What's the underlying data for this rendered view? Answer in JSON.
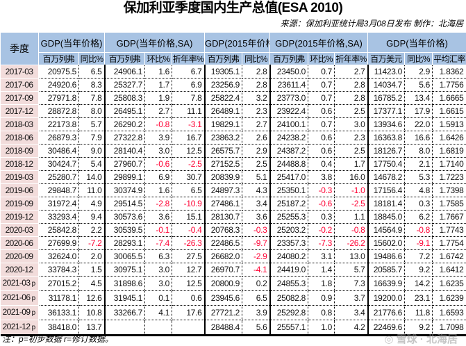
{
  "title": "保加利亚季度国内生产总值(ESA 2010)",
  "source": "来源：保加利亚统计局3月08日发布  制作：北海居",
  "header": {
    "quarter": "季度",
    "groups": [
      "GDP(当年价格)",
      "GDP(当年价格,SA)",
      "GDP(2015年价格)",
      "GDP(2015年价格,SA)",
      "GDP(当年价格)"
    ],
    "subs": [
      "百万列弗",
      "同比%",
      "百万列弗",
      "环比%",
      "折年率%",
      "百万列弗",
      "同比%",
      "百万列弗",
      "环比%",
      "折年率%",
      "百万美元",
      "同比%",
      "平均汇率"
    ]
  },
  "rows": [
    {
      "q": "2017-03",
      "m": "",
      "v": [
        "20975.5",
        "6.5",
        "24906.1",
        "1.6",
        "6.7",
        "19305.1",
        "2.8",
        "23450.0",
        "0.7",
        "2.7",
        "11423.0",
        "2.9",
        "1.8362"
      ]
    },
    {
      "q": "2017-06",
      "m": "",
      "v": [
        "24920.6",
        "8.3",
        "25327.7",
        "1.7",
        "6.9",
        "23256.9",
        "2.8",
        "23611.4",
        "0.7",
        "2.8",
        "14034.7",
        "5.6",
        "1.7756"
      ]
    },
    {
      "q": "2017-09",
      "m": "",
      "v": [
        "27971.8",
        "7.8",
        "25808.3",
        "1.9",
        "7.8",
        "25822.4",
        "3.2",
        "23773.0",
        "0.7",
        "2.8",
        "16785.2",
        "13.4",
        "1.6665"
      ]
    },
    {
      "q": "2017-12",
      "m": "",
      "v": [
        "28872.8",
        "8.0",
        "26495.1",
        "2.7",
        "11.1",
        "26489.1",
        "2.3",
        "23922.4",
        "0.6",
        "2.5",
        "17377.1",
        "17.9",
        "1.6615"
      ]
    },
    {
      "q": "2018-03",
      "m": "",
      "v": [
        "22173.8",
        "5.7",
        "26290.2",
        "-0.8",
        "-3.1",
        "19829.1",
        "2.7",
        "24100.1",
        "0.7",
        "3.0",
        "13934.6",
        "22.0",
        "1.5913"
      ]
    },
    {
      "q": "2018-06",
      "m": "",
      "v": [
        "26879.3",
        "7.9",
        "27322.8",
        "3.9",
        "16.7",
        "23863.2",
        "2.6",
        "24238.2",
        "0.6",
        "2.3",
        "16363.8",
        "16.6",
        "1.6426"
      ]
    },
    {
      "q": "2018-09",
      "m": "",
      "v": [
        "30486.4",
        "9.0",
        "28140.4",
        "3.0",
        "12.5",
        "26575.7",
        "2.9",
        "24387.2",
        "0.6",
        "2.5",
        "18126.7",
        "8.0",
        "1.6819"
      ]
    },
    {
      "q": "2018-12",
      "m": "",
      "v": [
        "30424.7",
        "5.4",
        "27960.7",
        "-0.6",
        "-2.5",
        "27152.5",
        "2.5",
        "24488.8",
        "0.4",
        "1.7",
        "17750.4",
        "2.1",
        "1.7140"
      ]
    },
    {
      "q": "2019-03",
      "m": "",
      "v": [
        "25280.7",
        "14.0",
        "29899.1",
        "6.9",
        "30.7",
        "20839.9",
        "5.1",
        "25417.0",
        "3.8",
        "16.0",
        "14678.2",
        "5.3",
        "1.7223"
      ]
    },
    {
      "q": "2019-06",
      "m": "",
      "v": [
        "29848.7",
        "11.0",
        "30374.9",
        "1.6",
        "6.5",
        "24897.3",
        "4.3",
        "25350.1",
        "-0.3",
        "-1.0",
        "17156.4",
        "4.8",
        "1.7398"
      ]
    },
    {
      "q": "2019-09",
      "m": "",
      "v": [
        "31972.4",
        "4.9",
        "29514.5",
        "-2.8",
        "-10.9",
        "27486.1",
        "3.4",
        "25187.2",
        "-0.6",
        "-2.5",
        "18181.4",
        "0.3",
        "1.7585"
      ]
    },
    {
      "q": "2019-12",
      "m": "",
      "v": [
        "33293.4",
        "9.4",
        "30573.6",
        "3.6",
        "15.1",
        "28130.7",
        "3.6",
        "25255.3",
        "0.3",
        "1.1",
        "18845.0",
        "6.2",
        "1.7667"
      ]
    },
    {
      "q": "2020-03",
      "m": "",
      "v": [
        "25842.8",
        "2.2",
        "30539.5",
        "-0.1",
        "-0.4",
        "20768.3",
        "-0.3",
        "25203.2",
        "-0.2",
        "-0.8",
        "14564.9",
        "-0.8",
        "1.7743"
      ]
    },
    {
      "q": "2020-06",
      "m": "",
      "v": [
        "27699.9",
        "-7.2",
        "28293.1",
        "-7.4",
        "-26.3",
        "22486.5",
        "-9.7",
        "23357.3",
        "-7.3",
        "-26.2",
        "15602.0",
        "-9.1",
        "1.7754"
      ]
    },
    {
      "q": "2020-09",
      "m": "",
      "v": [
        "32624.0",
        "2.0",
        "30065.5",
        "6.3",
        "27.5",
        "26682.0",
        "-2.9",
        "24080.2",
        "3.1",
        "13.0",
        "19486.6",
        "7.2",
        "1.6742"
      ]
    },
    {
      "q": "2020-12",
      "m": "",
      "v": [
        "33784.3",
        "1.5",
        "30975.1",
        "3.0",
        "12.7",
        "26970.7",
        "-4.1",
        "24419.0",
        "1.4",
        "5.7",
        "20585.7",
        "9.2",
        "1.6412"
      ]
    },
    {
      "q": "2021-03",
      "m": "p",
      "v": [
        "27015.2",
        "4.5",
        "31898.6",
        "3.0",
        "12.5",
        "20800.9",
        "0.2",
        "24855.3",
        "1.8",
        "7.3",
        "16639.9",
        "14.2",
        "1.6235"
      ]
    },
    {
      "q": "2021-06",
      "m": "p",
      "v": [
        "31178.1",
        "12.6",
        "31945.1",
        "0.1",
        "0.6",
        "23945.6",
        "6.5",
        "25082.8",
        "0.9",
        "3.7",
        "19200.0",
        "23.1",
        "1.6239"
      ]
    },
    {
      "q": "2021-09",
      "m": "p",
      "v": [
        "36133.1",
        "10.8",
        "33266.7",
        "4.1",
        "17.6",
        "27721.2",
        "3.9",
        "25292.8",
        "0.8",
        "3.4",
        "21776.6",
        "11.8",
        "1.6593"
      ]
    },
    {
      "q": "2021-12",
      "m": "p",
      "v": [
        "38418.0",
        "13.7",
        "",
        "",
        "",
        "28488.4",
        "5.6",
        "25557.1",
        "1.0",
        "4.2",
        "22469.6",
        "9.2",
        "1.7098"
      ]
    }
  ],
  "note": "注：p=初步数据  r=修订数据。",
  "watermark": "雪球 · 北海居",
  "colors": {
    "header_bg": "#a8c3e3",
    "quarter_bg": "#f2dcdb",
    "negative": "#ff0033"
  }
}
